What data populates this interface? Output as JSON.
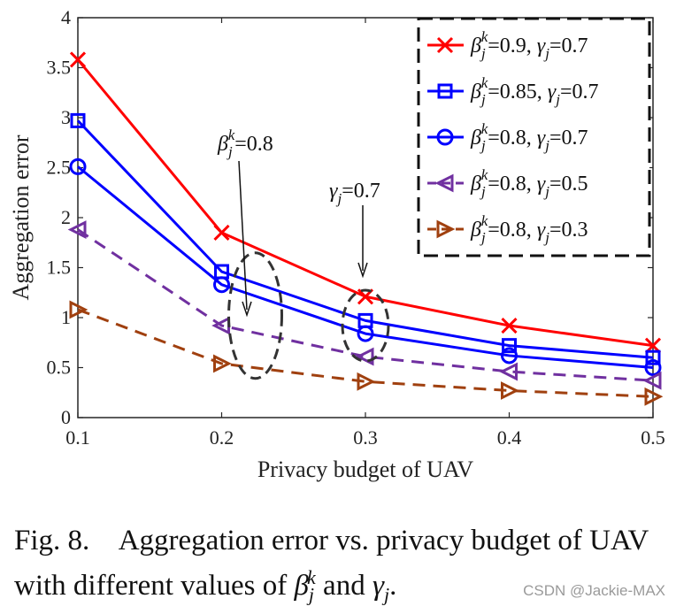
{
  "chart_data": {
    "type": "line",
    "x": [
      0.1,
      0.2,
      0.3,
      0.4,
      0.5
    ],
    "xlabel": "Privacy budget of UAV",
    "ylabel": "Aggregation error",
    "xlim": [
      0.1,
      0.5
    ],
    "ylim": [
      0,
      4
    ],
    "xticks": [
      "0.1",
      "0.2",
      "0.3",
      "0.4",
      "0.5"
    ],
    "yticks": [
      "0",
      "0.5",
      "1",
      "1.5",
      "2",
      "2.5",
      "3",
      "3.5",
      "4"
    ],
    "grid": false,
    "legend_position": "top-right",
    "series": [
      {
        "name": "β_j^k=0.9, γ_j=0.7",
        "beta": "0.9",
        "gamma": "0.7",
        "color": "#ff0000",
        "marker": "x",
        "style": "solid",
        "values": [
          3.58,
          1.85,
          1.21,
          0.92,
          0.72
        ]
      },
      {
        "name": "β_j^k=0.85, γ_j=0.7",
        "beta": "0.85",
        "gamma": "0.7",
        "color": "#0000ff",
        "marker": "square",
        "style": "solid",
        "values": [
          2.97,
          1.46,
          0.97,
          0.72,
          0.6
        ]
      },
      {
        "name": "β_j^k=0.8, γ_j=0.7",
        "beta": "0.8",
        "gamma": "0.7",
        "color": "#0000ff",
        "marker": "circle",
        "style": "solid",
        "values": [
          2.51,
          1.33,
          0.84,
          0.62,
          0.5
        ]
      },
      {
        "name": "β_j^k=0.8, γ_j=0.5",
        "beta": "0.8",
        "gamma": "0.5",
        "color": "#7030a0",
        "marker": "tri-left",
        "style": "dashed",
        "values": [
          1.88,
          0.92,
          0.61,
          0.46,
          0.37
        ]
      },
      {
        "name": "β_j^k=0.8, γ_j=0.3",
        "beta": "0.8",
        "gamma": "0.3",
        "color": "#a0400f",
        "marker": "tri-right",
        "style": "dashed",
        "values": [
          1.08,
          0.54,
          0.36,
          0.27,
          0.21
        ]
      }
    ],
    "annotations": [
      {
        "label": "β_j^k=0.8",
        "value": "0.8",
        "target_x": 0.2
      },
      {
        "label": "γ_j=0.7",
        "value": "0.7",
        "target_x": 0.3
      }
    ]
  },
  "caption": {
    "label": "Fig. 8.",
    "text": "Aggregation error vs. privacy budget of UAV with different values of",
    "and": "and"
  },
  "watermark": "CSDN @Jackie-MAX"
}
